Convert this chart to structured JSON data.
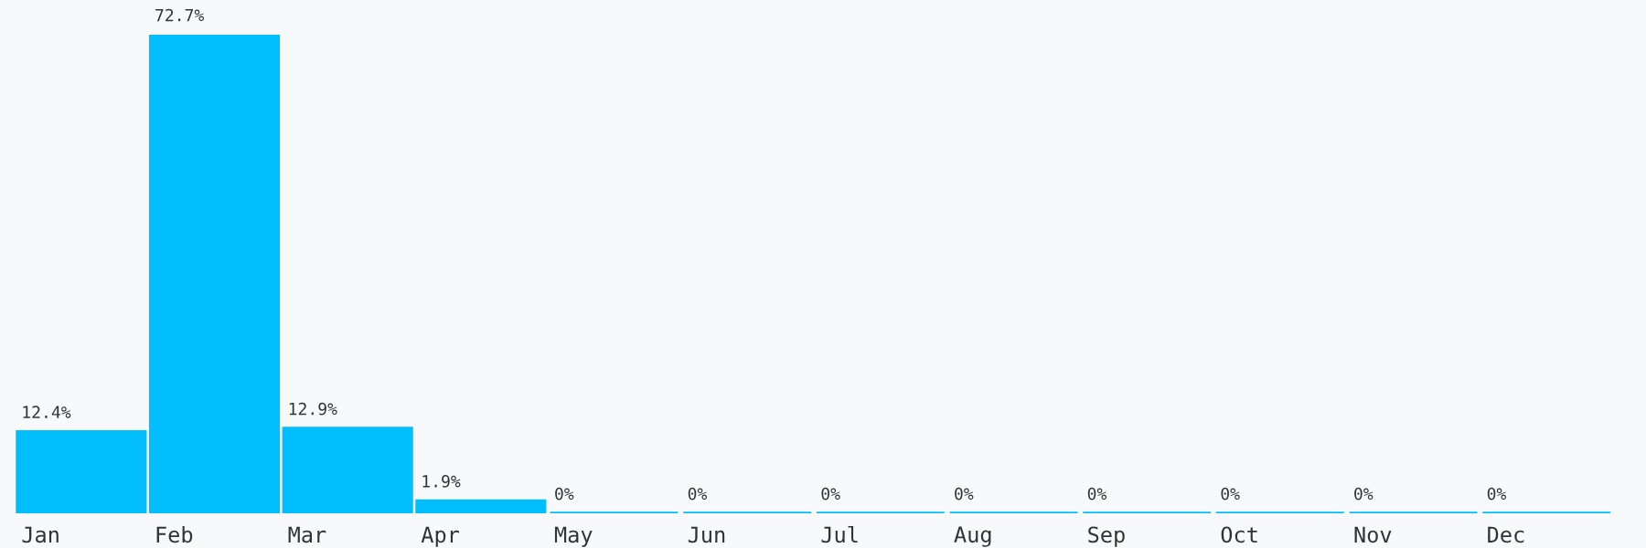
{
  "chart_data": {
    "type": "bar",
    "categories": [
      "Jan",
      "Feb",
      "Mar",
      "Apr",
      "May",
      "Jun",
      "Jul",
      "Aug",
      "Sep",
      "Oct",
      "Nov",
      "Dec"
    ],
    "values": [
      12.4,
      72.7,
      12.9,
      1.9,
      0,
      0,
      0,
      0,
      0,
      0,
      0,
      0
    ],
    "value_labels": [
      "12.4%",
      "72.7%",
      "12.9%",
      "1.9%",
      "0%",
      "0%",
      "0%",
      "0%",
      "0%",
      "0%",
      "0%",
      "0%"
    ],
    "color": "#03befc"
  }
}
